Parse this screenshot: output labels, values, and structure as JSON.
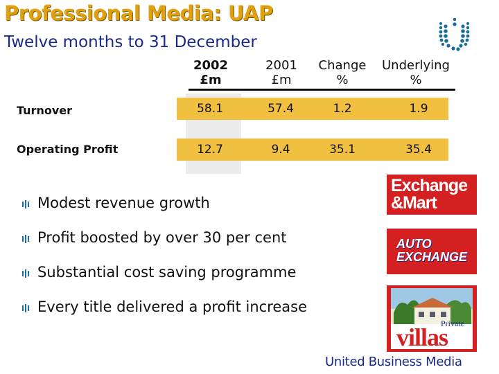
{
  "header": {
    "title": "Professional Media: UAP",
    "subtitle": "Twelve months to 31 December"
  },
  "table": {
    "columns": [
      {
        "line1": "2002",
        "line2": "£m",
        "bold": true
      },
      {
        "line1": "2001",
        "line2": "£m",
        "bold": false
      },
      {
        "line1": "Change",
        "line2": "%",
        "bold": false
      },
      {
        "line1": "Underlying",
        "line2": "%",
        "bold": false
      }
    ],
    "rows": [
      {
        "label": "Turnover",
        "values": [
          "58.1",
          "57.4",
          "1.2",
          "1.9"
        ]
      },
      {
        "label": "Operating Profit",
        "values": [
          "12.7",
          "9.4",
          "35.1",
          "35.4"
        ]
      }
    ]
  },
  "bullets": [
    "Modest revenue growth",
    "Profit boosted by over 30 per cent",
    "Substantial cost saving programme",
    "Every title delivered a profit increase"
  ],
  "brands": {
    "exchange_mart": {
      "line1": "Exchange",
      "line2": "&Mart"
    },
    "auto_exchange": {
      "line1": "AUTO",
      "line2": "EXCHANGE"
    },
    "private_villas": {
      "small": "Private",
      "big": "villas"
    }
  },
  "footer": {
    "company": "United Business Media"
  },
  "colors": {
    "accent": "#f2c040",
    "title": "#e0a010",
    "navy": "#1a2a8a",
    "brand_red": "#d42020"
  }
}
